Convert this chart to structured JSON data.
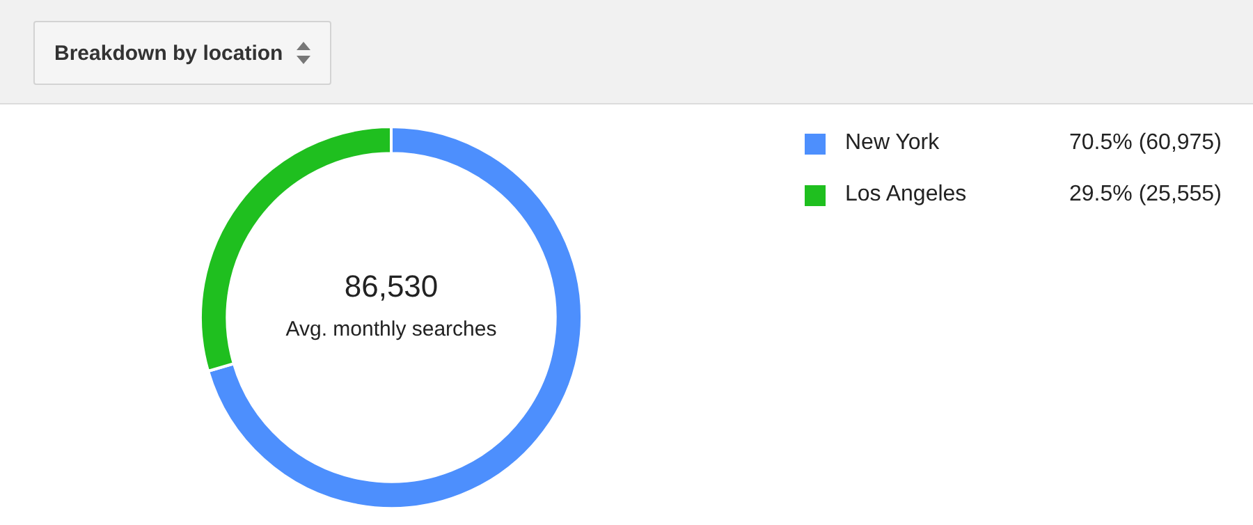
{
  "chart_data": {
    "type": "donut",
    "title": "Breakdown by location",
    "categories": [
      "New York",
      "Los Angeles"
    ],
    "values": [
      60975,
      25555
    ],
    "colors": [
      "#4d8ffd",
      "#1fbf1f"
    ],
    "value_labels": [
      "70.5% (60,975)",
      "29.5% (25,555)"
    ],
    "annotations": [
      "86,530",
      "Avg. monthly searches"
    ],
    "legend": "top right"
  }
}
